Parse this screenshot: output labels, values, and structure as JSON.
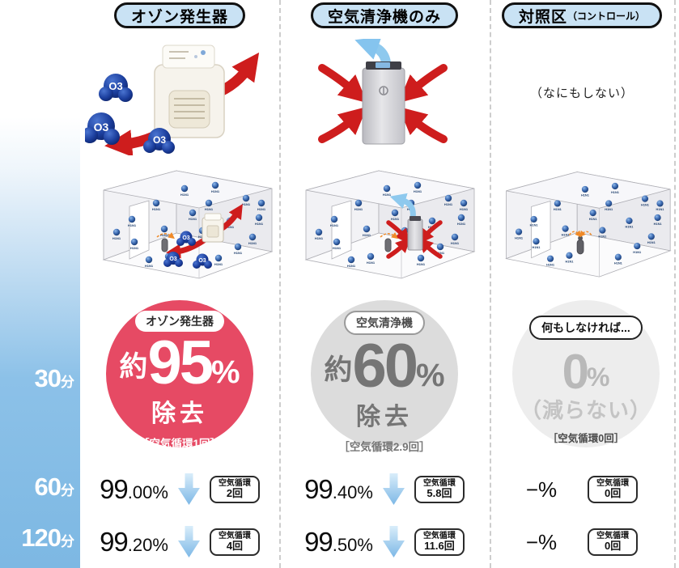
{
  "labels": {
    "virus": "H1N1",
    "o3": "O3"
  },
  "time": {
    "t30": {
      "num": "30",
      "unit": "分"
    },
    "t60": {
      "num": "60",
      "unit": "分"
    },
    "t120": {
      "num": "120",
      "unit": "分"
    }
  },
  "col1": {
    "header": "オゾン発生器",
    "circle": {
      "badge": "オゾン発生器",
      "prefix": "約",
      "value": "95",
      "percent": "%",
      "action": "除去",
      "circulation": "［空気循環1回］"
    },
    "r60": {
      "int": "99",
      "dec": ".00%",
      "circ1": "空気循環",
      "circ2": "2回"
    },
    "r120": {
      "int": "99",
      "dec": ".20%",
      "circ1": "空気循環",
      "circ2": "4回"
    }
  },
  "col2": {
    "header": "空気清浄機のみ",
    "circle": {
      "badge": "空気清浄機",
      "prefix": "約",
      "value": "60",
      "percent": "%",
      "action": "除去",
      "circulation": "［空気循環2.9回］"
    },
    "r60": {
      "int": "99",
      "dec": ".40%",
      "circ1": "空気循環",
      "circ2": "5.8回"
    },
    "r120": {
      "int": "99",
      "dec": ".50%",
      "circ1": "空気循環",
      "circ2": "11.6回"
    }
  },
  "col3": {
    "header_main": "対照区",
    "header_sub": "（コントロール）",
    "note": "（なにもしない）",
    "circle": {
      "badge": "何もしなければ...",
      "value": "0",
      "percent": "%",
      "action": "（減らない）",
      "circulation": "［空気循環0回］"
    },
    "r60": {
      "value": "−%",
      "circ1": "空気循環",
      "circ2": "0回"
    },
    "r120": {
      "value": "−%",
      "circ1": "空気循環",
      "circ2": "0回"
    }
  },
  "colors": {
    "accent_red": "#e64a64",
    "arrow_red": "#ce1d1d",
    "arrow_blue": "#8ec9ee",
    "band_blue": "#7db8e3",
    "header_blue": "#c9e2f4",
    "circle_gray": "#dcdcdc",
    "circle_lightgray": "#ededed"
  }
}
